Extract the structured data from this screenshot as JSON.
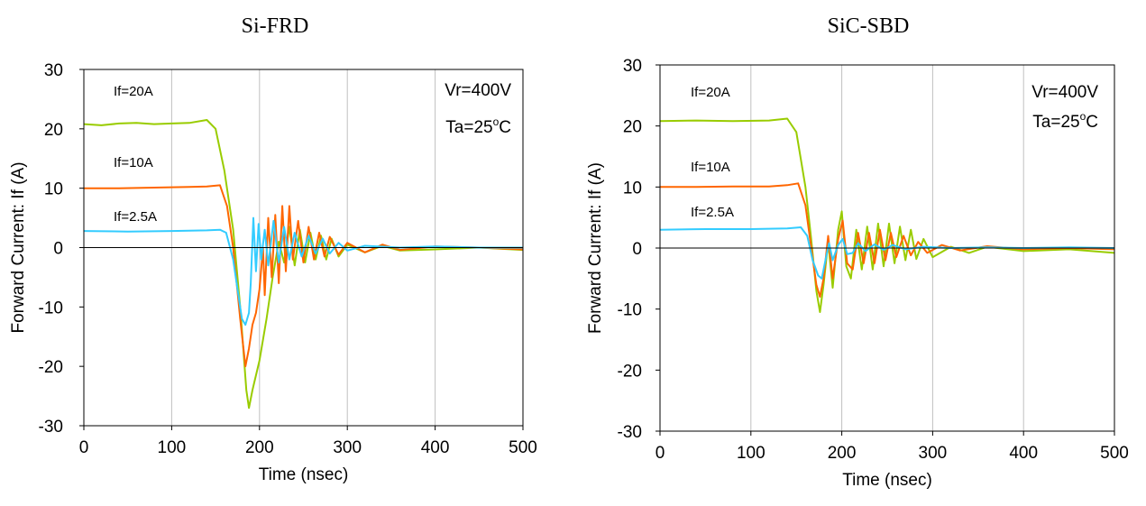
{
  "chart_data": [
    {
      "type": "line",
      "title": "Si-FRD",
      "xlabel": "Time (nsec)",
      "ylabel": "Forward Current: If (A)",
      "xlim": [
        0,
        500
      ],
      "ylim": [
        -30,
        30
      ],
      "xticks": [
        "0",
        "100",
        "200",
        "300",
        "400",
        "500"
      ],
      "yticks": [
        "30",
        "20",
        "10",
        "0",
        "-10",
        "-20",
        "-30"
      ],
      "grid": "vertical",
      "conditions": {
        "voltage": "Vr=400V",
        "temp_prefix": "Ta=25",
        "temp_sup": "o",
        "temp_suffix": "C"
      },
      "series": [
        {
          "name": "If=20A",
          "color": "#99cc00",
          "points": [
            [
              0,
              20.8
            ],
            [
              20,
              20.6
            ],
            [
              40,
              20.9
            ],
            [
              60,
              21.0
            ],
            [
              80,
              20.8
            ],
            [
              100,
              20.9
            ],
            [
              120,
              21.0
            ],
            [
              140,
              21.5
            ],
            [
              150,
              20.0
            ],
            [
              160,
              13.0
            ],
            [
              170,
              3.0
            ],
            [
              178,
              -10.0
            ],
            [
              185,
              -24.0
            ],
            [
              188,
              -27.0
            ],
            [
              192,
              -24.0
            ],
            [
              200,
              -19.0
            ],
            [
              208,
              -12.0
            ],
            [
              215,
              -5.0
            ],
            [
              222,
              1.0
            ],
            [
              228,
              -2.5
            ],
            [
              234,
              3.5
            ],
            [
              240,
              -3.0
            ],
            [
              246,
              3.0
            ],
            [
              252,
              -2.5
            ],
            [
              258,
              2.5
            ],
            [
              264,
              -2.0
            ],
            [
              270,
              2.0
            ],
            [
              276,
              -2.0
            ],
            [
              282,
              1.5
            ],
            [
              290,
              -1.5
            ],
            [
              300,
              0.5
            ],
            [
              320,
              -0.8
            ],
            [
              340,
              0.3
            ],
            [
              360,
              -0.5
            ],
            [
              400,
              -0.3
            ],
            [
              450,
              0.0
            ],
            [
              500,
              -0.4
            ]
          ]
        },
        {
          "name": "If=10A",
          "color": "#ff6600",
          "points": [
            [
              0,
              10.0
            ],
            [
              40,
              10.0
            ],
            [
              80,
              10.1
            ],
            [
              120,
              10.2
            ],
            [
              140,
              10.3
            ],
            [
              155,
              10.5
            ],
            [
              163,
              7.0
            ],
            [
              170,
              0.0
            ],
            [
              178,
              -12.0
            ],
            [
              184,
              -20.0
            ],
            [
              188,
              -17.0
            ],
            [
              192,
              -13.0
            ],
            [
              196,
              -11.0
            ],
            [
              200,
              -7.0
            ],
            [
              204,
              0.0
            ],
            [
              206,
              -8.0
            ],
            [
              210,
              5.0
            ],
            [
              214,
              -5.0
            ],
            [
              218,
              5.5
            ],
            [
              222,
              -6.0
            ],
            [
              226,
              7.0
            ],
            [
              230,
              -4.0
            ],
            [
              234,
              7.0
            ],
            [
              238,
              -2.0
            ],
            [
              244,
              4.5
            ],
            [
              250,
              -2.5
            ],
            [
              256,
              3.5
            ],
            [
              262,
              -2.0
            ],
            [
              268,
              2.5
            ],
            [
              274,
              -1.5
            ],
            [
              280,
              1.8
            ],
            [
              290,
              -1.2
            ],
            [
              300,
              0.8
            ],
            [
              320,
              -0.8
            ],
            [
              340,
              0.5
            ],
            [
              360,
              -0.4
            ],
            [
              400,
              0.2
            ],
            [
              450,
              0.0
            ],
            [
              500,
              -0.3
            ]
          ]
        },
        {
          "name": "If=2.5A",
          "color": "#33ccff",
          "points": [
            [
              0,
              2.8
            ],
            [
              50,
              2.7
            ],
            [
              100,
              2.8
            ],
            [
              140,
              2.9
            ],
            [
              155,
              3.0
            ],
            [
              162,
              2.5
            ],
            [
              170,
              -2.0
            ],
            [
              176,
              -8.0
            ],
            [
              180,
              -12.0
            ],
            [
              184,
              -13.0
            ],
            [
              188,
              -11.0
            ],
            [
              190,
              -6.0
            ],
            [
              193,
              5.0
            ],
            [
              196,
              -4.0
            ],
            [
              199,
              4.0
            ],
            [
              202,
              -2.0
            ],
            [
              206,
              3.0
            ],
            [
              210,
              -3.0
            ],
            [
              216,
              4.5
            ],
            [
              222,
              -2.5
            ],
            [
              228,
              3.5
            ],
            [
              234,
              -2.0
            ],
            [
              240,
              2.5
            ],
            [
              248,
              -1.5
            ],
            [
              256,
              2.0
            ],
            [
              264,
              -1.0
            ],
            [
              272,
              1.5
            ],
            [
              280,
              -1.0
            ],
            [
              290,
              0.8
            ],
            [
              300,
              -0.5
            ],
            [
              320,
              0.3
            ],
            [
              360,
              0.0
            ],
            [
              400,
              0.2
            ],
            [
              450,
              0.0
            ],
            [
              500,
              0.0
            ]
          ]
        }
      ],
      "labels": [
        {
          "text": "If=20A",
          "series": "If=20A"
        },
        {
          "text": "If=10A",
          "series": "If=10A"
        },
        {
          "text": "If=2.5A",
          "series": "If=2.5A"
        }
      ]
    },
    {
      "type": "line",
      "title": "SiC-SBD",
      "xlabel": "Time (nsec)",
      "ylabel": "Forward Current: If (A)",
      "xlim": [
        0,
        500
      ],
      "ylim": [
        -30,
        30
      ],
      "xticks": [
        "0",
        "100",
        "200",
        "300",
        "400",
        "500"
      ],
      "yticks": [
        "30",
        "20",
        "10",
        "0",
        "-10",
        "-20",
        "-30"
      ],
      "grid": "vertical",
      "conditions": {
        "voltage": "Vr=400V",
        "temp_prefix": "Ta=25",
        "temp_sup": "o",
        "temp_suffix": "C"
      },
      "series": [
        {
          "name": "If=20A",
          "color": "#99cc00",
          "points": [
            [
              0,
              20.8
            ],
            [
              40,
              20.9
            ],
            [
              80,
              20.8
            ],
            [
              120,
              20.9
            ],
            [
              140,
              21.2
            ],
            [
              150,
              19.0
            ],
            [
              160,
              10.0
            ],
            [
              166,
              2.0
            ],
            [
              172,
              -7.0
            ],
            [
              176,
              -10.5
            ],
            [
              180,
              -6.0
            ],
            [
              185,
              1.0
            ],
            [
              190,
              -6.5
            ],
            [
              196,
              3.0
            ],
            [
              200,
              6.0
            ],
            [
              205,
              -3.0
            ],
            [
              210,
              -5.0
            ],
            [
              216,
              3.0
            ],
            [
              222,
              -3.5
            ],
            [
              228,
              3.5
            ],
            [
              234,
              -3.5
            ],
            [
              240,
              4.0
            ],
            [
              246,
              -3.0
            ],
            [
              252,
              4.0
            ],
            [
              258,
              -2.5
            ],
            [
              264,
              3.5
            ],
            [
              270,
              -2.0
            ],
            [
              276,
              3.0
            ],
            [
              282,
              -1.8
            ],
            [
              290,
              1.5
            ],
            [
              300,
              -1.5
            ],
            [
              320,
              0.2
            ],
            [
              340,
              -0.8
            ],
            [
              360,
              0.2
            ],
            [
              400,
              -0.5
            ],
            [
              450,
              -0.2
            ],
            [
              500,
              -0.8
            ]
          ]
        },
        {
          "name": "If=10A",
          "color": "#ff6600",
          "points": [
            [
              0,
              10.0
            ],
            [
              40,
              10.0
            ],
            [
              80,
              10.1
            ],
            [
              120,
              10.1
            ],
            [
              140,
              10.3
            ],
            [
              152,
              10.6
            ],
            [
              160,
              7.0
            ],
            [
              166,
              0.5
            ],
            [
              172,
              -6.0
            ],
            [
              176,
              -8.0
            ],
            [
              180,
              -5.0
            ],
            [
              185,
              2.0
            ],
            [
              190,
              -5.0
            ],
            [
              196,
              1.5
            ],
            [
              201,
              4.5
            ],
            [
              206,
              -2.5
            ],
            [
              212,
              -3.5
            ],
            [
              218,
              2.5
            ],
            [
              224,
              -2.5
            ],
            [
              230,
              2.5
            ],
            [
              236,
              -2.5
            ],
            [
              242,
              3.0
            ],
            [
              248,
              -2.0
            ],
            [
              254,
              2.5
            ],
            [
              260,
              -1.5
            ],
            [
              268,
              2.0
            ],
            [
              276,
              -1.2
            ],
            [
              284,
              1.0
            ],
            [
              294,
              -0.8
            ],
            [
              310,
              0.5
            ],
            [
              330,
              -0.4
            ],
            [
              360,
              0.3
            ],
            [
              400,
              -0.2
            ],
            [
              450,
              0.0
            ],
            [
              500,
              -0.2
            ]
          ]
        },
        {
          "name": "If=2.5A",
          "color": "#33ccff",
          "points": [
            [
              0,
              3.0
            ],
            [
              50,
              3.1
            ],
            [
              100,
              3.1
            ],
            [
              140,
              3.2
            ],
            [
              155,
              3.4
            ],
            [
              162,
              2.0
            ],
            [
              168,
              -2.0
            ],
            [
              174,
              -4.5
            ],
            [
              178,
              -5.0
            ],
            [
              182,
              -2.0
            ],
            [
              186,
              0.8
            ],
            [
              190,
              -2.0
            ],
            [
              196,
              0.5
            ],
            [
              201,
              1.5
            ],
            [
              206,
              -1.0
            ],
            [
              212,
              -0.8
            ],
            [
              218,
              0.8
            ],
            [
              226,
              -0.5
            ],
            [
              236,
              0.6
            ],
            [
              246,
              -0.3
            ],
            [
              256,
              0.5
            ],
            [
              270,
              -0.2
            ],
            [
              290,
              0.2
            ],
            [
              320,
              0.0
            ],
            [
              360,
              0.1
            ],
            [
              400,
              0.0
            ],
            [
              450,
              0.1
            ],
            [
              500,
              0.0
            ]
          ]
        }
      ],
      "labels": [
        {
          "text": "If=20A",
          "series": "If=20A"
        },
        {
          "text": "If=10A",
          "series": "If=10A"
        },
        {
          "text": "If=2.5A",
          "series": "If=2.5A"
        }
      ]
    }
  ]
}
